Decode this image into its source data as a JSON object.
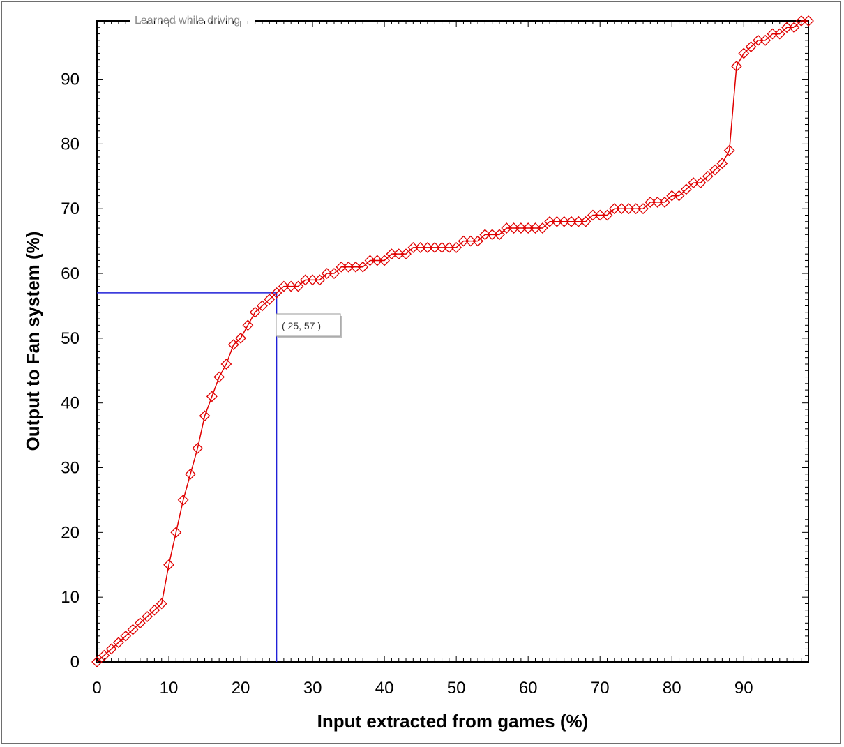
{
  "group_caption": "Learned while driving",
  "crosshair_label": "( 25, 57 )",
  "colors": {
    "series": "#e00000",
    "crosshair": "#2020d8",
    "axis": "#000000",
    "caption": "#8a8a8a"
  },
  "chart_data": {
    "type": "line",
    "title": "",
    "xlabel": "Input extracted from games (%)",
    "ylabel": "Output to Fan system (%)",
    "xlim": [
      0,
      99
    ],
    "ylim": [
      0,
      99
    ],
    "x_ticks": [
      0,
      10,
      20,
      30,
      40,
      50,
      60,
      70,
      80,
      90
    ],
    "y_ticks": [
      0,
      10,
      20,
      30,
      40,
      50,
      60,
      70,
      80,
      90
    ],
    "grid": false,
    "marker": "diamond",
    "crosshair": {
      "x": 25,
      "y": 57
    },
    "series": [
      {
        "x": [
          0,
          1,
          2,
          3,
          4,
          5,
          6,
          7,
          8,
          9,
          10,
          11,
          12,
          13,
          14,
          15,
          16,
          17,
          18,
          19,
          20,
          21,
          22,
          23,
          24,
          25,
          26,
          27,
          28,
          29,
          30,
          31,
          32,
          33,
          34,
          35,
          36,
          37,
          38,
          39,
          40,
          41,
          42,
          43,
          44,
          45,
          46,
          47,
          48,
          49,
          50,
          51,
          52,
          53,
          54,
          55,
          56,
          57,
          58,
          59,
          60,
          61,
          62,
          63,
          64,
          65,
          66,
          67,
          68,
          69,
          70,
          71,
          72,
          73,
          74,
          75,
          76,
          77,
          78,
          79,
          80,
          81,
          82,
          83,
          84,
          85,
          86,
          87,
          88,
          89,
          90,
          91,
          92,
          93,
          94,
          95,
          96,
          97,
          98,
          99
        ],
        "values": [
          0,
          1,
          2,
          3,
          4,
          5,
          6,
          7,
          8,
          9,
          15,
          20,
          25,
          29,
          33,
          38,
          41,
          44,
          46,
          49,
          50,
          52,
          54,
          55,
          56,
          57,
          58,
          58,
          58,
          59,
          59,
          59,
          60,
          60,
          61,
          61,
          61,
          61,
          62,
          62,
          62,
          63,
          63,
          63,
          64,
          64,
          64,
          64,
          64,
          64,
          64,
          65,
          65,
          65,
          66,
          66,
          66,
          67,
          67,
          67,
          67,
          67,
          67,
          68,
          68,
          68,
          68,
          68,
          68,
          69,
          69,
          69,
          70,
          70,
          70,
          70,
          70,
          71,
          71,
          71,
          72,
          72,
          73,
          74,
          74,
          75,
          76,
          77,
          79,
          92,
          94,
          95,
          96,
          96,
          97,
          97,
          98,
          98,
          99,
          99
        ]
      }
    ]
  }
}
